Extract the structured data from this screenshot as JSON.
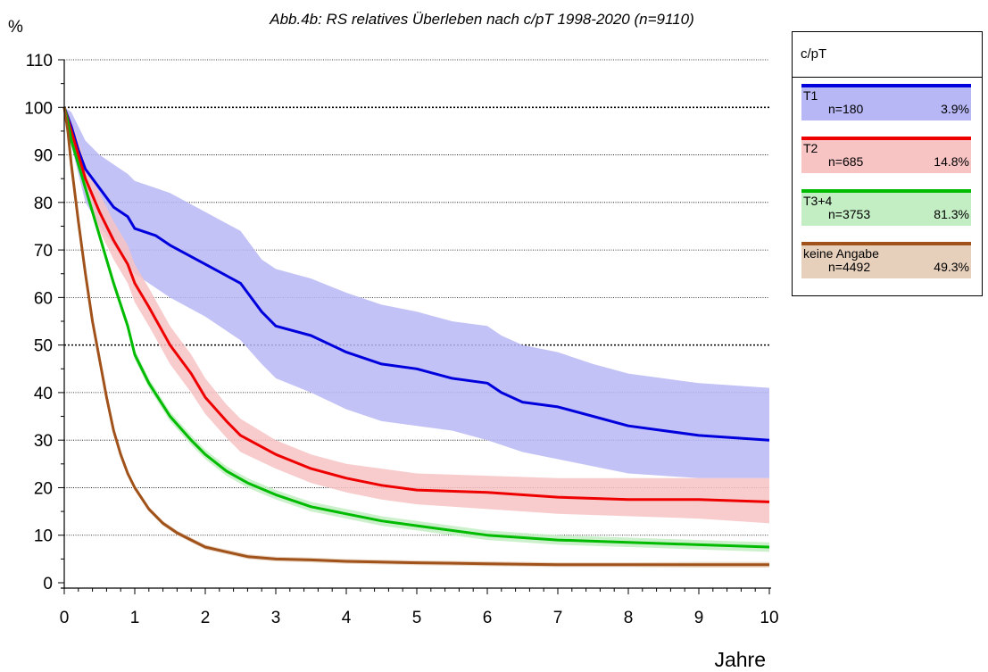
{
  "chart_data": {
    "type": "line",
    "title": "Abb.4b: RS relatives Überleben nach c/pT  1998-2020  (n=9110)",
    "ylabel": "%",
    "xlabel": "Jahre",
    "xlim": [
      0,
      10
    ],
    "ylim": [
      0,
      110
    ],
    "x_ticks": [
      "0",
      "1",
      "2",
      "3",
      "4",
      "5",
      "6",
      "7",
      "8",
      "9",
      "10"
    ],
    "y_ticks": [
      "0",
      "10",
      "20",
      "30",
      "40",
      "50",
      "60",
      "70",
      "80",
      "90",
      "100",
      "110"
    ],
    "grid": "horizontal",
    "legend": {
      "title": "c/pT",
      "position": "top-right",
      "entries": [
        {
          "name": "T1",
          "n": "n=180",
          "pct": "3.9%",
          "color": "#0000dd",
          "fill": "#b7b7f5"
        },
        {
          "name": "T2",
          "n": "n=685",
          "pct": "14.8%",
          "color": "#ee0000",
          "fill": "#f7c3c3"
        },
        {
          "name": "T3+4",
          "n": "n=3753",
          "pct": "81.3%",
          "color": "#00bb00",
          "fill": "#c3edc3"
        },
        {
          "name": "keine Angabe",
          "n": "n=4492",
          "pct": "49.3%",
          "color": "#a0521a",
          "fill": "#e6d0bc"
        }
      ]
    },
    "series": [
      {
        "name": "T1",
        "color": "#0000dd",
        "fill": "#b7b7f5",
        "x": [
          0,
          0.1,
          0.2,
          0.3,
          0.5,
          0.7,
          0.9,
          1.0,
          1.3,
          1.5,
          2.0,
          2.5,
          2.8,
          3.0,
          3.5,
          4.0,
          4.5,
          5.0,
          5.5,
          6.0,
          6.2,
          6.5,
          7.0,
          7.5,
          8.0,
          9.0,
          10.0
        ],
        "y": [
          100,
          96,
          91,
          87,
          83,
          79,
          77,
          74.5,
          73,
          71,
          67,
          63,
          57,
          54,
          52,
          48.5,
          46,
          45,
          43,
          42,
          40,
          38,
          37,
          35,
          33,
          31,
          30
        ],
        "lower": [
          100,
          92,
          86,
          80,
          75,
          71,
          67,
          65,
          62,
          60,
          56,
          51,
          46,
          43,
          40,
          36.5,
          34,
          33,
          32,
          30,
          29,
          27.5,
          26,
          24.5,
          23,
          22,
          22
        ],
        "upper": [
          100,
          99,
          96,
          93,
          90,
          88,
          86,
          84.5,
          83,
          82,
          78,
          74,
          68,
          66,
          64,
          61,
          58.5,
          57,
          55,
          54,
          52,
          50,
          48.5,
          46,
          44,
          42,
          41
        ]
      },
      {
        "name": "T2",
        "color": "#ee0000",
        "fill": "#f7c3c3",
        "x": [
          0,
          0.1,
          0.2,
          0.3,
          0.5,
          0.7,
          0.9,
          1.0,
          1.2,
          1.5,
          1.8,
          2.0,
          2.3,
          2.5,
          3.0,
          3.5,
          4.0,
          4.5,
          5.0,
          6.0,
          7.0,
          8.0,
          9.0,
          10.0
        ],
        "y": [
          100,
          95,
          90,
          85,
          78,
          72,
          67,
          63,
          58,
          50,
          44,
          39,
          34,
          31,
          27,
          24,
          22,
          20.5,
          19.5,
          19,
          18,
          17.5,
          17.5,
          17
        ],
        "lower": [
          100,
          93,
          88,
          82,
          74,
          68,
          63,
          59,
          54,
          46,
          40,
          35.5,
          30.5,
          27.5,
          24,
          21,
          19,
          17.5,
          16.5,
          15.5,
          14.5,
          14,
          13.5,
          12.5
        ],
        "upper": [
          100,
          97,
          93,
          88,
          82,
          76,
          71,
          67,
          62,
          54,
          48,
          43,
          37.5,
          34.5,
          30,
          27,
          25,
          24,
          23,
          22.5,
          22,
          22,
          22,
          22
        ]
      },
      {
        "name": "T3+4",
        "color": "#00bb00",
        "fill": "#c3edc3",
        "x": [
          0,
          0.05,
          0.1,
          0.2,
          0.3,
          0.5,
          0.7,
          0.9,
          1.0,
          1.2,
          1.5,
          1.8,
          2.0,
          2.3,
          2.6,
          3.0,
          3.5,
          4.0,
          4.5,
          5.0,
          6.0,
          7.0,
          8.0,
          9.0,
          10.0
        ],
        "y": [
          100,
          97,
          93,
          88,
          83,
          73,
          63,
          54,
          48,
          42,
          35,
          30,
          27,
          23.5,
          21,
          18.5,
          16,
          14.5,
          13,
          12,
          10,
          9,
          8.5,
          8,
          7.5
        ],
        "lower": [
          100,
          96.5,
          92,
          87,
          82,
          72,
          62,
          53,
          47,
          41,
          34,
          29,
          26,
          22.5,
          20,
          17.5,
          15,
          13.5,
          12,
          11,
          9,
          8,
          7.5,
          7,
          6.5
        ],
        "upper": [
          100,
          97.5,
          94,
          89,
          84,
          74,
          64,
          55,
          49,
          43,
          36,
          31,
          28,
          24.5,
          22,
          19.5,
          17,
          15.5,
          14,
          13,
          11,
          10,
          9.5,
          9,
          8.5
        ]
      },
      {
        "name": "keine Angabe",
        "color": "#a0521a",
        "fill": "#e6d0bc",
        "x": [
          0,
          0.05,
          0.1,
          0.2,
          0.3,
          0.4,
          0.5,
          0.6,
          0.7,
          0.8,
          0.9,
          1.0,
          1.2,
          1.4,
          1.6,
          1.8,
          2.0,
          2.3,
          2.6,
          3.0,
          3.5,
          4.0,
          5.0,
          6.0,
          7.0,
          8.0,
          9.0,
          10.0
        ],
        "y": [
          100,
          95,
          88,
          76,
          65,
          55,
          47,
          39,
          32,
          27,
          23,
          20,
          15.5,
          12.5,
          10.5,
          9,
          7.5,
          6.5,
          5.5,
          5,
          4.8,
          4.5,
          4.2,
          4,
          3.8,
          3.8,
          3.8,
          3.8
        ],
        "lower": [
          100,
          94.5,
          87.5,
          75.5,
          64.5,
          54.5,
          46.5,
          38.5,
          31.5,
          26.5,
          22.5,
          19.5,
          15,
          12,
          10,
          8.5,
          7,
          6,
          5,
          4.5,
          4.3,
          4,
          3.7,
          3.5,
          3.3,
          3.3,
          3.2,
          3.2
        ],
        "upper": [
          100,
          95.5,
          88.5,
          76.5,
          65.5,
          55.5,
          47.5,
          39.5,
          32.5,
          27.5,
          23.5,
          20.5,
          16,
          13,
          11,
          9.5,
          8,
          7,
          6,
          5.5,
          5.3,
          5,
          4.7,
          4.5,
          4.3,
          4.3,
          4.4,
          4.4
        ]
      }
    ]
  }
}
